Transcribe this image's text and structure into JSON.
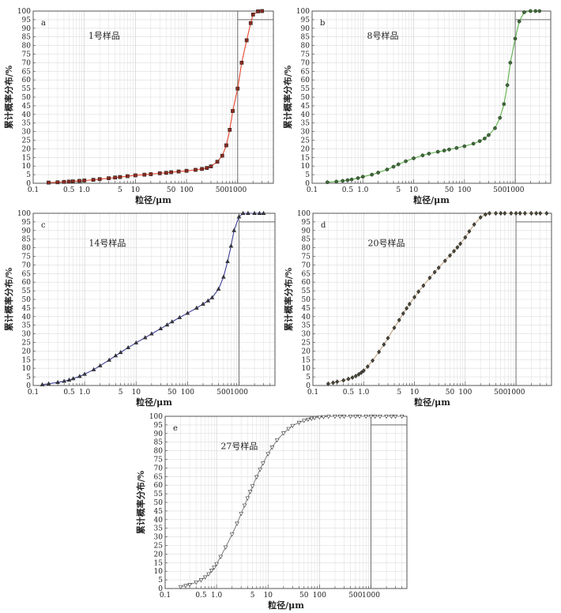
{
  "figure": {
    "panels": [
      {
        "id": "a",
        "letter": "a",
        "sample_label": "1号样品",
        "ylabel": "累计概率分布/%",
        "xlabel": "粒径/μm",
        "line_color": "#e8452c",
        "marker_shape": "square",
        "marker_fill": "#8a2a20"
      },
      {
        "id": "b",
        "letter": "b",
        "sample_label": "8号样品",
        "ylabel": "累计概率分布/%",
        "xlabel": "粒径/μm",
        "line_color": "#5db04a",
        "marker_shape": "circle",
        "marker_fill": "#3f6b39"
      },
      {
        "id": "c",
        "letter": "c",
        "sample_label": "14号样品",
        "ylabel": "累计概率分布/%",
        "xlabel": "粒径/μm",
        "line_color": "#3e3e9a",
        "marker_shape": "triangle-up",
        "marker_fill": "#3a3a48"
      },
      {
        "id": "d",
        "letter": "d",
        "sample_label": "20号样品",
        "ylabel": "累计概率分布/%",
        "xlabel": "粒径/μm",
        "line_color": "#c0a080",
        "marker_shape": "diamond",
        "marker_fill": "#4a4a3a"
      },
      {
        "id": "e",
        "letter": "e",
        "sample_label": "27号样品",
        "ylabel": "累计概率分布/%",
        "xlabel": "粒径/μm",
        "line_color": "#888888",
        "marker_shape": "triangle-down",
        "marker_fill": "#666666"
      }
    ]
  },
  "chart_data": [
    {
      "type": "scatter",
      "panel": "a",
      "title": "",
      "annotation": "1号样品",
      "xlabel": "粒径/μm",
      "ylabel": "累计概率分布/%",
      "xscale": "log",
      "xlim": [
        0.1,
        5000
      ],
      "ylim": [
        0,
        100
      ],
      "xticks": [
        "0.1",
        "0.5",
        "1.0",
        "5",
        "10",
        "50",
        "100",
        "500",
        "1000"
      ],
      "yticks": [
        "0",
        "5",
        "10",
        "15",
        "20",
        "25",
        "30",
        "35",
        "40",
        "45",
        "50",
        "55",
        "60",
        "65",
        "70",
        "75",
        "80",
        "85",
        "90",
        "95",
        "100"
      ],
      "grid": true,
      "reference_lines": {
        "x": 1000,
        "y": 95
      },
      "series": [
        {
          "x": [
            0.2,
            0.3,
            0.4,
            0.5,
            0.6,
            0.8,
            1.0,
            1.5,
            2,
            3,
            4,
            5,
            7,
            10,
            15,
            20,
            30,
            40,
            50,
            70,
            100,
            150,
            200,
            250,
            300,
            400,
            500,
            600,
            700,
            800,
            1000,
            1200,
            1500,
            1800,
            2000,
            2500,
            3000
          ],
          "y": [
            0.4,
            0.6,
            0.8,
            1.0,
            1.1,
            1.4,
            1.6,
            2.0,
            2.4,
            2.9,
            3.3,
            3.6,
            4.1,
            4.6,
            5.0,
            5.3,
            5.8,
            6.1,
            6.4,
            6.8,
            7.2,
            7.8,
            8.3,
            8.9,
            9.8,
            12.5,
            16.0,
            22.0,
            31.0,
            42.0,
            55.0,
            70.0,
            83.0,
            93.0,
            98.0,
            99.8,
            100.0
          ]
        }
      ]
    },
    {
      "type": "scatter",
      "panel": "b",
      "title": "",
      "annotation": "8号样品",
      "xlabel": "粒径/μm",
      "ylabel": "累计概率分布/%",
      "xscale": "log",
      "xlim": [
        0.1,
        5000
      ],
      "ylim": [
        0,
        100
      ],
      "xticks": [
        "0.1",
        "0.5",
        "1.0",
        "5",
        "10",
        "50",
        "100",
        "500",
        "1000"
      ],
      "yticks": [
        "0",
        "5",
        "10",
        "15",
        "20",
        "25",
        "30",
        "35",
        "40",
        "45",
        "50",
        "55",
        "60",
        "65",
        "70",
        "75",
        "80",
        "85",
        "90",
        "95",
        "100"
      ],
      "grid": true,
      "reference_lines": {
        "x": 1000,
        "y": 95
      },
      "series": [
        {
          "x": [
            0.2,
            0.3,
            0.4,
            0.5,
            0.6,
            0.8,
            1.0,
            1.5,
            2,
            3,
            4,
            5,
            7,
            10,
            15,
            20,
            30,
            40,
            50,
            70,
            100,
            150,
            200,
            250,
            300,
            400,
            500,
            600,
            700,
            800,
            1000,
            1200,
            1500,
            2000,
            2500,
            3000
          ],
          "y": [
            0.6,
            1.0,
            1.4,
            1.8,
            2.2,
            3.0,
            3.8,
            5.0,
            6.2,
            8.0,
            9.6,
            11.0,
            12.8,
            14.5,
            16.2,
            17.2,
            18.3,
            19.0,
            19.6,
            20.5,
            21.5,
            23.0,
            24.5,
            26.0,
            28.0,
            32.0,
            38.0,
            46.0,
            57.0,
            70.0,
            84.0,
            94.0,
            99.3,
            100.0,
            100.0,
            100.0
          ]
        }
      ]
    },
    {
      "type": "scatter",
      "panel": "c",
      "title": "",
      "annotation": "14号样品",
      "xlabel": "粒径/μm",
      "ylabel": "累计概率分布/%",
      "xscale": "log",
      "xlim": [
        0.1,
        5000
      ],
      "ylim": [
        0,
        100
      ],
      "xticks": [
        "0.1",
        "0.5",
        "1.0",
        "5",
        "10",
        "50",
        "100",
        "500",
        "1000"
      ],
      "yticks": [
        "0",
        "5",
        "10",
        "15",
        "20",
        "25",
        "30",
        "35",
        "40",
        "45",
        "50",
        "55",
        "60",
        "65",
        "70",
        "75",
        "80",
        "85",
        "90",
        "95",
        "100"
      ],
      "grid": true,
      "reference_lines": {
        "x": 1000,
        "y": 95
      },
      "series": [
        {
          "x": [
            0.15,
            0.2,
            0.3,
            0.4,
            0.5,
            0.6,
            0.8,
            1.0,
            1.5,
            2,
            3,
            4,
            5,
            7,
            10,
            15,
            20,
            30,
            40,
            50,
            70,
            100,
            150,
            200,
            250,
            300,
            400,
            500,
            600,
            700,
            800,
            1000,
            1200,
            1500,
            2000,
            2500,
            3000
          ],
          "y": [
            0.5,
            1.0,
            1.8,
            2.5,
            3.2,
            4.0,
            5.3,
            6.6,
            9.2,
            11.5,
            14.8,
            17.3,
            19.2,
            22.0,
            24.8,
            27.8,
            30.0,
            33.0,
            35.2,
            37.0,
            39.5,
            42.0,
            45.0,
            47.3,
            49.2,
            51.0,
            56.0,
            63.0,
            72.0,
            81.0,
            90.0,
            98.0,
            100.0,
            100.0,
            100.0,
            100.0,
            100.0
          ]
        }
      ]
    },
    {
      "type": "scatter",
      "panel": "d",
      "title": "",
      "annotation": "20号样品",
      "xlabel": "粒径/μm",
      "ylabel": "累计概率分布/%",
      "xscale": "log",
      "xlim": [
        0.1,
        5000
      ],
      "ylim": [
        0,
        100
      ],
      "xticks": [
        "0.1",
        "0.5",
        "1.0",
        "5",
        "10",
        "50",
        "100",
        "500",
        "1000"
      ],
      "yticks": [
        "0",
        "5",
        "10",
        "15",
        "20",
        "25",
        "30",
        "35",
        "40",
        "45",
        "50",
        "55",
        "60",
        "65",
        "70",
        "75",
        "80",
        "85",
        "90",
        "95",
        "100"
      ],
      "grid": true,
      "reference_lines": {
        "x": 1000,
        "y": 95
      },
      "series": [
        {
          "x": [
            0.2,
            0.25,
            0.3,
            0.4,
            0.5,
            0.6,
            0.7,
            0.8,
            0.9,
            1.0,
            1.2,
            1.5,
            2,
            2.5,
            3,
            4,
            5,
            6,
            7,
            8,
            10,
            12,
            15,
            20,
            25,
            30,
            40,
            50,
            60,
            70,
            80,
            100,
            120,
            150,
            200,
            250,
            300,
            400,
            500,
            600,
            800,
            1000,
            1200,
            1500,
            2000,
            2500,
            3000,
            4000
          ],
          "y": [
            1.0,
            1.6,
            2.2,
            3.0,
            3.8,
            4.6,
            5.5,
            6.5,
            7.5,
            8.6,
            11.0,
            14.5,
            19.5,
            23.8,
            27.5,
            33.5,
            38.0,
            41.8,
            44.8,
            47.3,
            51.3,
            54.5,
            58.0,
            62.5,
            65.8,
            68.4,
            72.4,
            75.5,
            78.0,
            80.2,
            82.3,
            86.0,
            89.5,
            93.5,
            97.6,
            99.3,
            100.0,
            100.0,
            100.0,
            100.0,
            100.0,
            100.0,
            100.0,
            100.0,
            100.0,
            100.0,
            100.0,
            100.0
          ]
        }
      ]
    },
    {
      "type": "scatter",
      "panel": "e",
      "title": "",
      "annotation": "27号样品",
      "xlabel": "粒径/μm",
      "ylabel": "累计概率分布/%",
      "xscale": "log",
      "xlim": [
        0.1,
        5000
      ],
      "ylim": [
        0,
        100
      ],
      "xticks": [
        "0.1",
        "0.5",
        "1.0",
        "5",
        "10",
        "50",
        "100",
        "500",
        "1000"
      ],
      "yticks": [
        "0",
        "5",
        "10",
        "15",
        "20",
        "25",
        "30",
        "35",
        "40",
        "45",
        "50",
        "55",
        "60",
        "65",
        "70",
        "75",
        "80",
        "85",
        "90",
        "95",
        "100"
      ],
      "grid": true,
      "reference_lines": {
        "x": 1000,
        "y": 95
      },
      "series": [
        {
          "x": [
            0.2,
            0.25,
            0.3,
            0.4,
            0.5,
            0.6,
            0.7,
            0.8,
            0.9,
            1.0,
            1.2,
            1.5,
            2,
            2.5,
            3,
            3.5,
            4,
            4.5,
            5,
            6,
            7,
            8,
            10,
            12,
            15,
            20,
            25,
            30,
            40,
            50,
            60,
            70,
            80,
            100,
            120,
            150,
            200,
            250,
            300,
            400,
            500,
            600,
            800,
            1000,
            1200,
            1500,
            2000,
            2500,
            3000,
            4000
          ],
          "y": [
            1.0,
            1.6,
            2.3,
            3.6,
            5.0,
            6.6,
            8.4,
            10.5,
            12.3,
            14.3,
            18.5,
            24.0,
            31.5,
            37.8,
            43.5,
            48.3,
            52.5,
            56.2,
            59.5,
            64.8,
            69.2,
            72.8,
            78.2,
            82.0,
            86.2,
            90.2,
            92.8,
            94.6,
            96.4,
            97.5,
            98.2,
            98.7,
            99.1,
            99.5,
            99.7,
            99.9,
            100.0,
            100.0,
            100.0,
            100.0,
            100.0,
            100.0,
            100.0,
            100.0,
            100.0,
            100.0,
            100.0,
            100.0,
            100.0,
            100.0
          ]
        }
      ]
    }
  ]
}
